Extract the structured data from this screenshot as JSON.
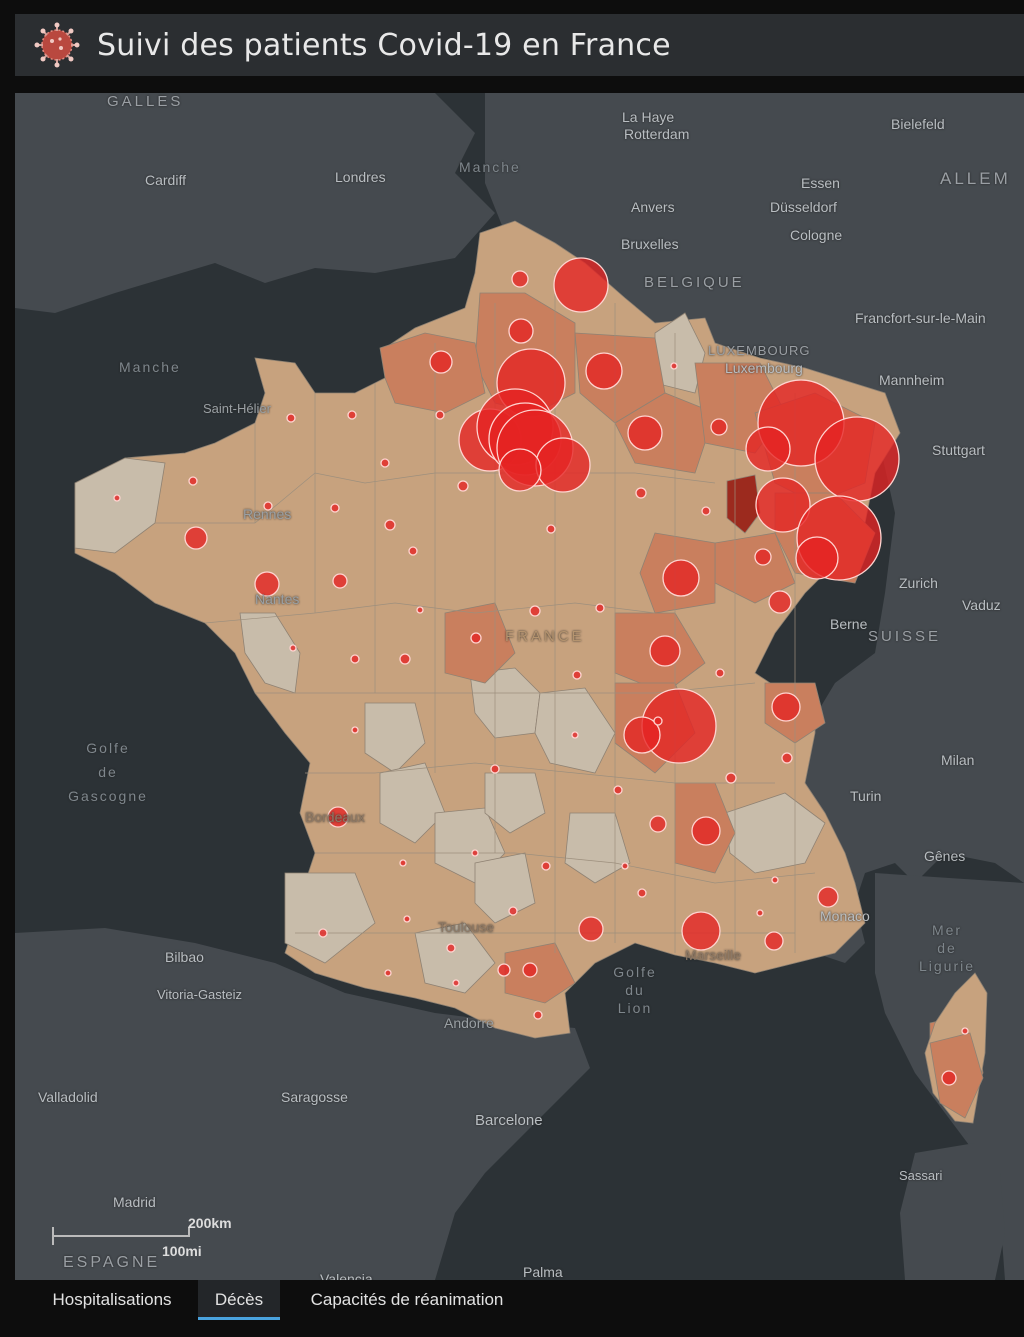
{
  "header": {
    "title": "Suivi des patients Covid-19 en France",
    "logo_icon": "coronavirus-icon"
  },
  "tabs": [
    {
      "label": "Hospitalisations",
      "active": false
    },
    {
      "label": "Décès",
      "active": true
    },
    {
      "label": "Capacités de réanimation",
      "active": false
    }
  ],
  "map_labels": {
    "galles": "GALLES",
    "cardiff": "Cardiff",
    "londres": "Londres",
    "manche_n": "Manche",
    "manche_w": "Manche",
    "saint_helier": "Saint-Hélier",
    "la_haye": "La Haye",
    "rotterdam": "Rotterdam",
    "anvers": "Anvers",
    "bruxelles": "Bruxelles",
    "belgique": "BELGIQUE",
    "bielefeld": "Bielefeld",
    "essen": "Essen",
    "dusseldorf": "Düsseldorf",
    "cologne": "Cologne",
    "allemagne": "ALLEM",
    "francfort": "Francfort-sur-le-Main",
    "luxembourg_country": "LUXEMBOURG",
    "luxembourg_city": "Luxembourg",
    "mannheim": "Mannheim",
    "stuttgart": "Stuttgart",
    "rennes": "Rennes",
    "nantes": "Nantes",
    "zurich": "Zurich",
    "vaduz": "Vaduz",
    "berne": "Berne",
    "suisse": "SUISSE",
    "france": "FRANCE",
    "golfe_gascogne": "Golfe\nde\nGascogne",
    "milan": "Milan",
    "turin": "Turin",
    "bordeaux": "Bordeaux",
    "genes": "Gênes",
    "monaco": "Monaco",
    "toulouse": "Toulouse",
    "bilbao": "Bilbao",
    "vitoria": "Vitoria-Gasteiz",
    "marseille": "Marseille",
    "golfe_lion": "Golfe\ndu\nLion",
    "mer_ligurie": "Mer\nde\nLigurie",
    "andorre": "Andorre",
    "valladolid": "Valladolid",
    "saragosse": "Saragosse",
    "barcelone": "Barcelone",
    "sassari": "Sassari",
    "madrid": "Madrid",
    "espagne": "ESPAGNE",
    "valencia": "Valencia",
    "palma": "Palma"
  },
  "scale": {
    "km": "200km",
    "mi": "100mi"
  },
  "colors": {
    "water": "#2c3236",
    "land": "#454a4f",
    "dept_low": "#c8bcaa",
    "dept_mid": "#c7a27e",
    "dept_high": "#c97f5e",
    "dept_max": "#9c2a1e",
    "circle": "#e52222"
  }
}
